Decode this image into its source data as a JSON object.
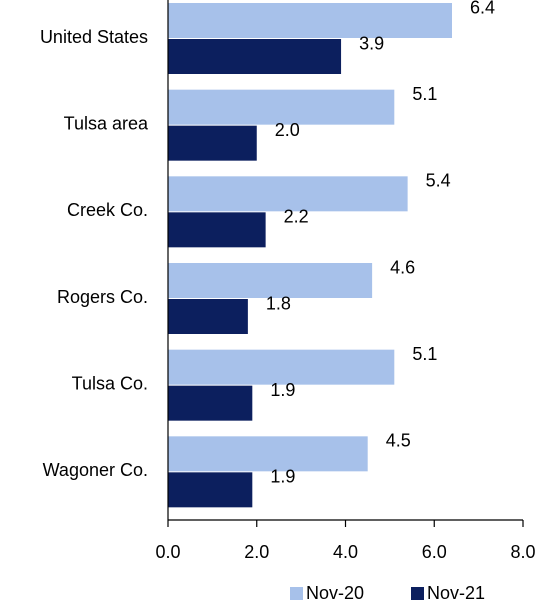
{
  "chart_data": {
    "type": "hbar",
    "categories": [
      "United States",
      "Tulsa area",
      "Creek Co.",
      "Rogers Co.",
      "Tulsa Co.",
      "Wagoner Co."
    ],
    "series": [
      {
        "name": "Nov-20",
        "color": "#a7c1ea",
        "values": [
          6.4,
          5.1,
          5.4,
          4.6,
          5.1,
          4.5
        ],
        "value_labels": [
          "6.4",
          "5.1",
          "5.4",
          "4.6",
          "5.1",
          "4.5"
        ]
      },
      {
        "name": "Nov-21",
        "color": "#0c1f5e",
        "values": [
          3.9,
          2.0,
          2.2,
          1.8,
          1.9,
          1.9
        ],
        "value_labels": [
          "3.9",
          "2.0",
          "2.2",
          "1.8",
          "1.9",
          "1.9"
        ]
      }
    ],
    "xlim": [
      0,
      8
    ],
    "xticks": [
      {
        "value": 0,
        "label": "0.0"
      },
      {
        "value": 2,
        "label": "2.0"
      },
      {
        "value": 4,
        "label": "4.0"
      },
      {
        "value": 6,
        "label": "6.0"
      },
      {
        "value": 8,
        "label": "8.0"
      }
    ],
    "legend": "bottom"
  }
}
